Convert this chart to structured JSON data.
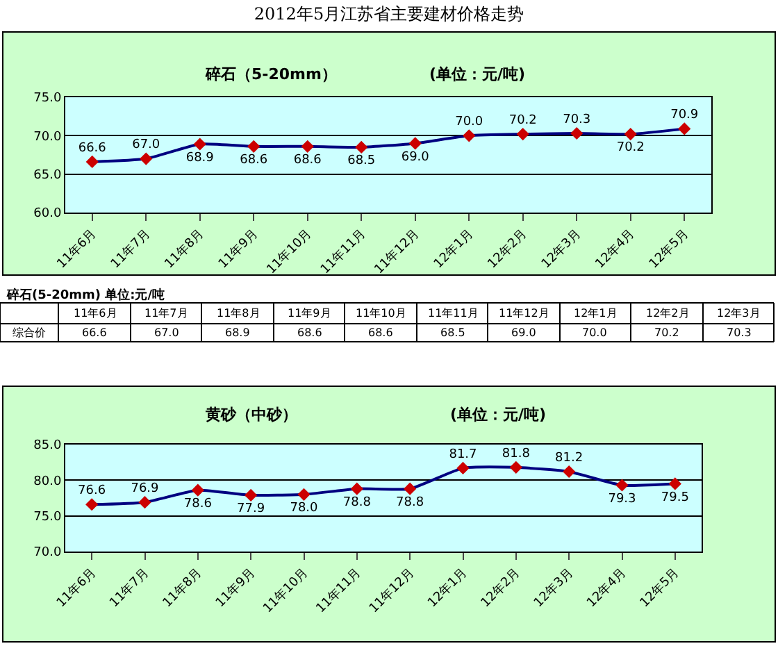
{
  "chart_data": [
    {
      "type": "line",
      "title": "2012年5月江苏省主要建材价格走势",
      "subtitle": "碎石（5-20mm）",
      "annotations": [
        "(单位：元/吨)"
      ],
      "categories": [
        "11年6月",
        "11年7月",
        "11年8月",
        "11年9月",
        "11年10月",
        "11年11月",
        "11年12月",
        "12年1月",
        "12年2月",
        "12年3月",
        "12年4月",
        "12年5月"
      ],
      "values": [
        66.6,
        67.0,
        68.9,
        68.6,
        68.6,
        68.5,
        69.0,
        70.0,
        70.2,
        70.3,
        70.2,
        70.9
      ],
      "color": "#000080",
      "colors": [
        "#cc0000",
        "#cc0000",
        "#cc0000",
        "#cc0000",
        "#cc0000",
        "#cc0000",
        "#cc0000",
        "#cc0000",
        "#cc0000",
        "#cc0000",
        "#cc0000",
        "#cc0000"
      ],
      "ylim": [
        60,
        75
      ],
      "yticks": [
        {
          "value": 60,
          "label": "60.0"
        },
        {
          "value": 65,
          "label": "65.0"
        },
        {
          "value": 70,
          "label": "70.0"
        },
        {
          "value": 75,
          "label": "75.0"
        }
      ],
      "grid": "y",
      "marker": "diamond",
      "line_style": "solid",
      "value_labels": [
        "66.6",
        "67.0",
        "68.9",
        "68.6",
        "68.6",
        "68.5",
        "69.0",
        "70.0",
        "70.2",
        "70.3",
        "70.2",
        "70.9"
      ]
    },
    {
      "type": "other",
      "title": "碎石(5-20mm) 单位:元/吨",
      "categories": [
        "11年6月",
        "11年7月",
        "11年8月",
        "11年9月",
        "11年10月",
        "11年11月",
        "11年12月",
        "12年1月",
        "12年2月",
        "12年3月"
      ],
      "series": [
        {
          "name": "综合价",
          "values": [
            66.6,
            67.0,
            68.9,
            68.6,
            68.6,
            68.5,
            69.0,
            70.0,
            70.2,
            70.3
          ],
          "value_labels": [
            "66.6",
            "67.0",
            "68.9",
            "68.6",
            "68.6",
            "68.5",
            "69.0",
            "70.0",
            "70.2",
            "70.3"
          ]
        }
      ]
    },
    {
      "type": "line",
      "title": "黄砂（中砂）",
      "annotations": [
        "(单位：元/吨)"
      ],
      "categories": [
        "11年6月",
        "11年7月",
        "11年8月",
        "11年9月",
        "11年10月",
        "11年11月",
        "11年12月",
        "12年1月",
        "12年2月",
        "12年3月",
        "12年4月",
        "12年5月"
      ],
      "values": [
        76.6,
        76.9,
        78.6,
        77.9,
        78.0,
        78.8,
        78.8,
        81.7,
        81.8,
        81.2,
        79.3,
        79.5
      ],
      "color": "#000080",
      "colors": [
        "#cc0000",
        "#cc0000",
        "#cc0000",
        "#cc0000",
        "#cc0000",
        "#cc0000",
        "#cc0000",
        "#cc0000",
        "#cc0000",
        "#cc0000",
        "#cc0000",
        "#cc0000"
      ],
      "ylim": [
        70,
        85
      ],
      "yticks": [
        {
          "value": 70,
          "label": "70.0"
        },
        {
          "value": 75,
          "label": "75.0"
        },
        {
          "value": 80,
          "label": "80.0"
        },
        {
          "value": 85,
          "label": "85.0"
        }
      ],
      "grid": "y",
      "marker": "diamond",
      "line_style": "solid",
      "value_labels": [
        "76.6",
        "76.9",
        "78.6",
        "77.9",
        "78.0",
        "78.8",
        "78.8",
        "81.7",
        "81.8",
        "81.2",
        "79.3",
        "79.5"
      ]
    }
  ]
}
